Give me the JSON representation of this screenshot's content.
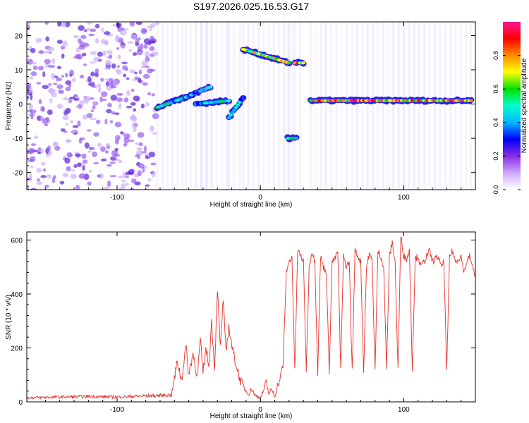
{
  "title": "S197.2026.025.16.53.G17",
  "chart_data": [
    {
      "type": "heatmap",
      "title": "S197.2026.025.16.53.G17",
      "xlabel": "Height of straight line (km)",
      "ylabel": "Frequency (Hz)",
      "xlim": [
        -163,
        150
      ],
      "ylim": [
        -25,
        24
      ],
      "xticks": [
        -100,
        0,
        100
      ],
      "yticks": [
        -20,
        -10,
        0,
        10,
        20
      ],
      "colorbar": {
        "label": "Normalized spectral amplitude",
        "range": [
          0,
          1
        ],
        "ticks": [
          "0.0",
          "0.2",
          "0.4",
          "0.6",
          "0.8"
        ],
        "colors": [
          "#ffffff",
          "#cfa8ff",
          "#8a2be2",
          "#0000ff",
          "#00b7ff",
          "#00ffcc",
          "#00e000",
          "#ffff00",
          "#ff8c00",
          "#ff0000",
          "#ff1493"
        ]
      },
      "features": [
        {
          "name": "noise field",
          "x_range": [
            -163,
            -72
          ],
          "freq_range": [
            -25,
            24
          ],
          "amplitude": 0.12
        },
        {
          "name": "low band segment 1",
          "x_range": [
            -72,
            -52
          ],
          "freq_start": -1,
          "freq_end": 2,
          "amplitude": 0.5
        },
        {
          "name": "low band segment 2",
          "x_range": [
            -52,
            -35
          ],
          "freq_start": 2,
          "freq_end": 5,
          "amplitude": 0.45
        },
        {
          "name": "low band segment 3",
          "x_range": [
            -45,
            -22
          ],
          "freq_start": 0,
          "freq_end": 1,
          "amplitude": 0.45
        },
        {
          "name": "low band segment 4",
          "x_range": [
            -22,
            -12
          ],
          "freq_start": -4,
          "freq_end": 2,
          "amplitude": 0.45
        },
        {
          "name": "high band segment",
          "x_range": [
            -12,
            20
          ],
          "freq_start": 16,
          "freq_end": 12,
          "amplitude": 0.7
        },
        {
          "name": "high band segment 2",
          "x_range": [
            24,
            30
          ],
          "freq_start": 12,
          "freq_end": 12,
          "amplitude": 0.7
        },
        {
          "name": "negative spot",
          "x_range": [
            19,
            25
          ],
          "freq_start": -10,
          "freq_end": -10,
          "amplitude": 0.5
        },
        {
          "name": "steady band",
          "x_range": [
            35,
            147
          ],
          "freq_start": 1,
          "freq_end": 1,
          "amplitude": 0.9
        }
      ]
    },
    {
      "type": "line",
      "xlabel": "Height of straight line (km)",
      "ylabel": "SNR (10 * v/v)",
      "xlim": [
        -163,
        150
      ],
      "ylim": [
        0,
        630
      ],
      "xticks": [
        -100,
        0,
        100
      ],
      "yticks": [
        0,
        200,
        400,
        600
      ],
      "color": "#e8302a",
      "series": [
        {
          "name": "SNR",
          "x": [
            -163,
            -140,
            -120,
            -100,
            -80,
            -62,
            -58,
            -55,
            -52,
            -50,
            -47,
            -44,
            -42,
            -40,
            -38,
            -36,
            -34,
            -32,
            -30,
            -28,
            -26,
            -24,
            -22,
            -20,
            -18,
            -16,
            -14,
            -12,
            -10,
            -8,
            -6,
            -4,
            -2,
            0,
            2,
            4,
            6,
            8,
            10,
            12,
            14,
            16,
            18,
            20,
            22,
            24,
            26,
            28,
            30,
            32,
            34,
            36,
            38,
            40,
            42,
            44,
            46,
            48,
            50,
            52,
            54,
            56,
            58,
            60,
            62,
            64,
            66,
            68,
            70,
            72,
            74,
            76,
            78,
            80,
            82,
            84,
            86,
            88,
            90,
            92,
            94,
            96,
            98,
            100,
            102,
            104,
            106,
            108,
            110,
            112,
            114,
            116,
            118,
            120,
            122,
            124,
            126,
            128,
            130,
            132,
            134,
            136,
            138,
            140,
            142,
            144,
            146,
            148,
            150
          ],
          "y": [
            15,
            18,
            20,
            18,
            22,
            25,
            150,
            80,
            210,
            100,
            180,
            90,
            230,
            110,
            200,
            130,
            300,
            120,
            420,
            200,
            380,
            180,
            280,
            210,
            160,
            120,
            80,
            60,
            40,
            30,
            50,
            25,
            20,
            15,
            40,
            70,
            30,
            45,
            20,
            60,
            90,
            150,
            480,
            520,
            540,
            110,
            560,
            545,
            520,
            120,
            500,
            560,
            520,
            110,
            540,
            500,
            480,
            115,
            520,
            530,
            560,
            120,
            540,
            500,
            520,
            110,
            560,
            540,
            520,
            110,
            500,
            550,
            520,
            115,
            560,
            540,
            500,
            120,
            540,
            590,
            520,
            115,
            620,
            540,
            530,
            560,
            120,
            530,
            540,
            500,
            520,
            540,
            560,
            520,
            530,
            540,
            500,
            520,
            110,
            540,
            560,
            520,
            530,
            540,
            480,
            520,
            540,
            500,
            470
          ]
        }
      ]
    }
  ]
}
